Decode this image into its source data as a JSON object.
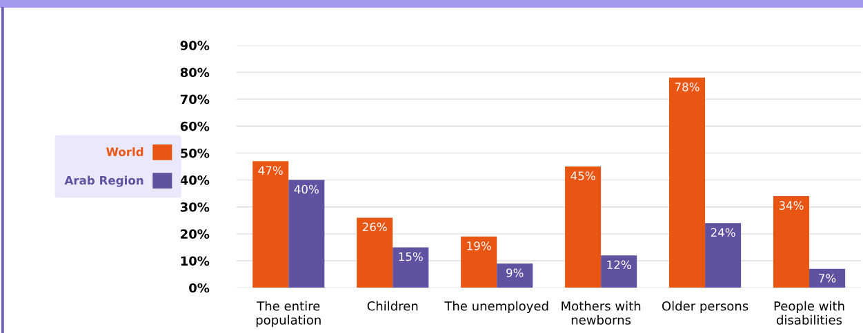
{
  "chart_data": {
    "type": "bar",
    "categories": [
      "The entire population",
      "Children",
      "The unemployed",
      "Mothers with newborns",
      "Older persons",
      "People with disabilities"
    ],
    "series": [
      {
        "name": "World",
        "color": "#e95513",
        "values": [
          47,
          26,
          19,
          45,
          78,
          34
        ]
      },
      {
        "name": "Arab Region",
        "color": "#6052a0",
        "values": [
          40,
          15,
          9,
          12,
          24,
          7
        ]
      }
    ],
    "ylim": [
      0,
      90
    ],
    "yticks": [
      {
        "value": 0,
        "label": "0%"
      },
      {
        "value": 10,
        "label": "10%"
      },
      {
        "value": 20,
        "label": "20%"
      },
      {
        "value": 30,
        "label": "30%"
      },
      {
        "value": 40,
        "label": "40%"
      },
      {
        "value": 50,
        "label": "50%"
      },
      {
        "value": 60,
        "label": "60%"
      },
      {
        "value": 70,
        "label": "70%"
      },
      {
        "value": 80,
        "label": "80%"
      },
      {
        "value": 90,
        "label": "90%"
      }
    ],
    "value_labels": [
      [
        "47%",
        "26%",
        "19%",
        "45%",
        "78%",
        "34%"
      ],
      [
        "40%",
        "15%",
        "9%",
        "12%",
        "24%",
        "7%"
      ]
    ],
    "grid": "y",
    "legend": "left"
  }
}
